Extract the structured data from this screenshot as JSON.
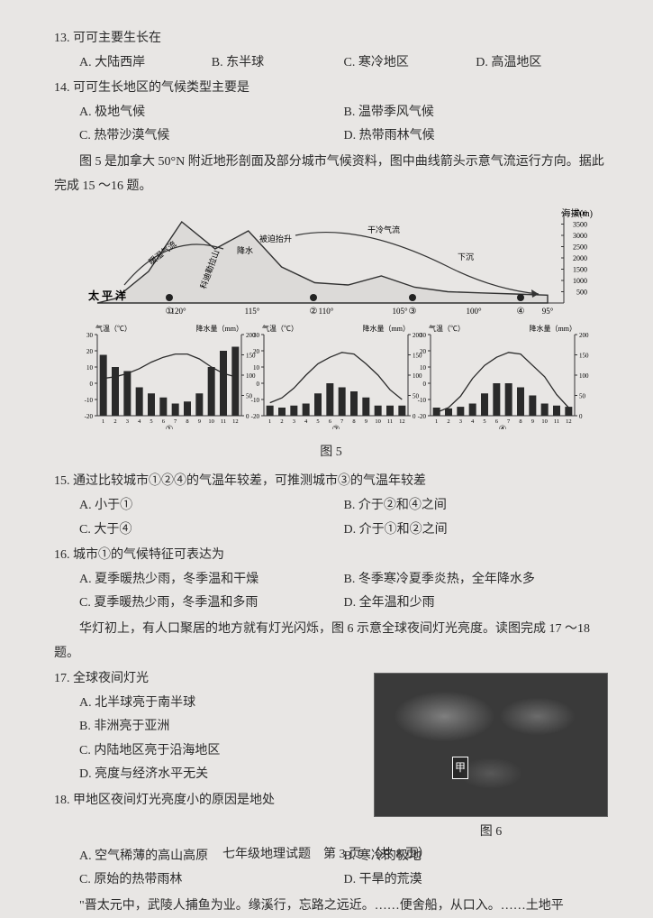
{
  "q13": {
    "stem": "13. 可可主要生长在",
    "opts": {
      "A": "A. 大陆西岸",
      "B": "B. 东半球",
      "C": "C. 寒冷地区",
      "D": "D. 高温地区"
    }
  },
  "q14": {
    "stem": "14. 可可生长地区的气候类型主要是",
    "opts": {
      "A": "A. 极地气候",
      "B": "B. 温带季风气候",
      "C": "C. 热带沙漠气候",
      "D": "D. 热带雨林气候"
    }
  },
  "intro5": "图 5 是加拿大 50°N 附近地形剖面及部分城市气候资料，图中曲线箭头示意气流运行方向。据此完成 15 ～16 题。",
  "fig5": {
    "caption": "图 5",
    "profile": {
      "pacific": "太 平 洋",
      "labels": [
        "暖湿气流",
        "科迪勒拉山",
        "迎风坡",
        "降水",
        "被迫抬升",
        "干冷气流",
        "下沉"
      ],
      "lons": [
        "120°",
        "115°",
        "110°",
        "105°",
        "100°",
        "95°"
      ],
      "cities": [
        "①",
        "②",
        "③",
        "④"
      ],
      "elev_label": "海拔(m)",
      "elev_ticks": [
        4000,
        3500,
        3000,
        2500,
        2000,
        1500,
        1000,
        500
      ],
      "topo_y": [
        200,
        1400,
        3600,
        2400,
        3200,
        1600,
        900,
        800,
        1200,
        700,
        500,
        450,
        400,
        350
      ]
    },
    "climo": {
      "temp_label": "气温（℃）",
      "prec_label": "降水量（mm）",
      "months": [
        1,
        2,
        3,
        4,
        5,
        6,
        7,
        8,
        9,
        10,
        11,
        12
      ],
      "temp_ticks": [
        30,
        20,
        10,
        0,
        -10,
        -20
      ],
      "prec_ticks": [
        200,
        150,
        100,
        50,
        0
      ],
      "panels": [
        {
          "name": "①",
          "temp": [
            3,
            4,
            6,
            9,
            13,
            16,
            18,
            18,
            15,
            10,
            6,
            4
          ],
          "prec": [
            150,
            120,
            110,
            70,
            55,
            45,
            30,
            35,
            55,
            120,
            160,
            170
          ],
          "bar_color": "#2a2a2a",
          "line_color": "#2a2a2a",
          "temp_range": [
            -20,
            30
          ],
          "prec_range": [
            0,
            200
          ]
        },
        {
          "name": "②",
          "temp": [
            -12,
            -9,
            -3,
            5,
            12,
            16,
            19,
            18,
            12,
            5,
            -4,
            -10
          ],
          "prec": [
            25,
            20,
            25,
            30,
            55,
            80,
            70,
            60,
            45,
            25,
            25,
            25
          ],
          "bar_color": "#2a2a2a",
          "line_color": "#2a2a2a",
          "temp_range": [
            -20,
            30
          ],
          "prec_range": [
            0,
            200
          ]
        },
        {
          "name": "④",
          "temp": [
            -18,
            -15,
            -8,
            3,
            11,
            16,
            19,
            18,
            11,
            4,
            -7,
            -15
          ],
          "prec": [
            20,
            18,
            22,
            30,
            55,
            80,
            80,
            70,
            50,
            30,
            25,
            22
          ],
          "bar_color": "#2a2a2a",
          "line_color": "#2a2a2a",
          "temp_range": [
            -20,
            30
          ],
          "prec_range": [
            0,
            200
          ]
        }
      ]
    }
  },
  "q15": {
    "stem": "15. 通过比较城市①②④的气温年较差，可推测城市③的气温年较差",
    "opts": {
      "A": "A. 小于①",
      "B": "B. 介于②和④之间",
      "C": "C. 大于④",
      "D": "D. 介于①和②之间"
    }
  },
  "q16": {
    "stem": "16. 城市①的气候特征可表达为",
    "opts": {
      "A": "A. 夏季暖热少雨，冬季温和干燥",
      "B": "B. 冬季寒冷夏季炎热，全年降水多",
      "C": "C. 夏季暖热少雨，冬季温和多雨",
      "D": "D. 全年温和少雨"
    }
  },
  "intro6": "华灯初上，有人口聚居的地方就有灯光闪烁，图 6 示意全球夜间灯光亮度。读图完成 17 ～18 题。",
  "q17": {
    "stem": "17. 全球夜间灯光",
    "opts": {
      "A": "A. 北半球亮于南半球",
      "B": "B. 非洲亮于亚洲",
      "C": "C. 内陆地区亮于沿海地区",
      "D": "D. 亮度与经济水平无关"
    }
  },
  "fig6": {
    "caption": "图 6",
    "marker": "甲"
  },
  "q18": {
    "stem": "18. 甲地区夜间灯光亮度小的原因是地处",
    "opts": {
      "A": "A. 空气稀薄的高山高原",
      "B": "B. 寒冷的极地",
      "C": "C. 原始的热带雨林",
      "D": "D. 干旱的荒漠"
    }
  },
  "tail": "\"晋太元中，武陵人捕鱼为业。缘溪行，忘路之远近。……便舍船，从口入。……土地平",
  "footer": "七年级地理试题　第 3 页　（共 8 页）"
}
